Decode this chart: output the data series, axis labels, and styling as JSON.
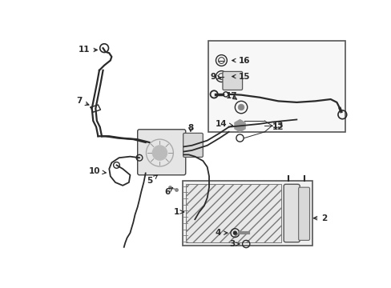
{
  "bg_color": "#ffffff",
  "line_color": "#2a2a2a",
  "gray": "#888888",
  "light_gray": "#cccccc",
  "inset_bg": "#f5f5f5",
  "condenser_bg": "#f0f0f0"
}
